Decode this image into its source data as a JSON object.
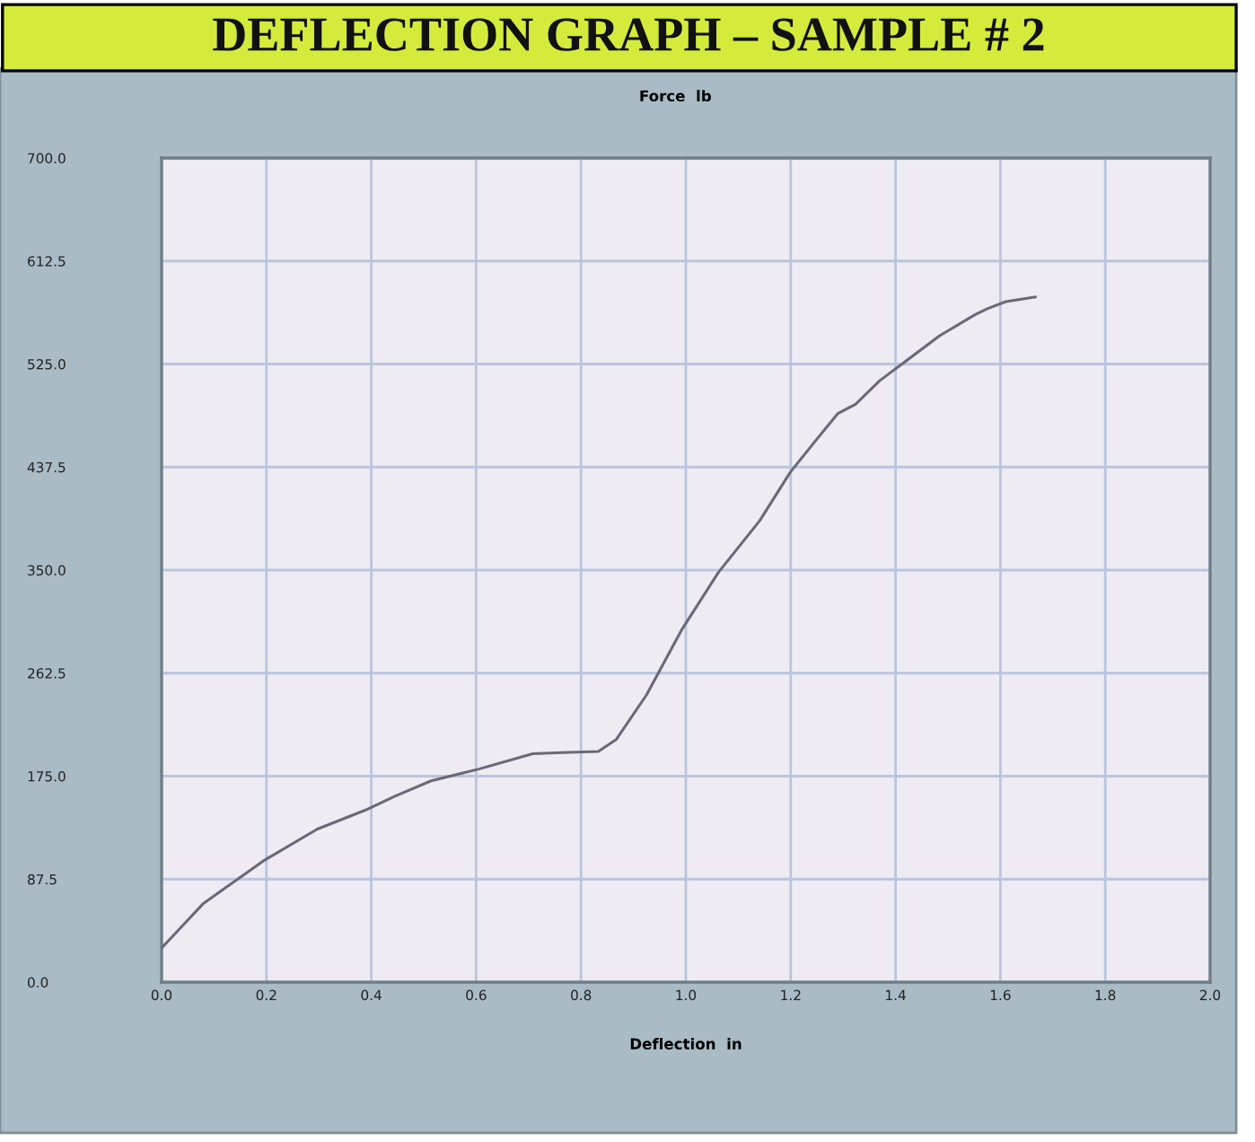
{
  "chart_data": {
    "type": "line",
    "title": "DEFLECTION GRAPH – SAMPLE # 2",
    "xlabel": "Deflection  in",
    "ylabel": "Force  lb",
    "x": [
      0,
      0.08,
      0.194,
      0.297,
      0.388,
      0.445,
      0.514,
      0.605,
      0.708,
      0.765,
      0.833,
      0.867,
      0.925,
      0.993,
      1.062,
      1.141,
      1.199,
      1.244,
      1.29,
      1.324,
      1.37,
      1.415,
      1.484,
      1.552,
      1.575,
      1.61,
      1.667
    ],
    "series": [
      {
        "color": "#6b6878",
        "values": [
          29,
          67,
          103,
          130,
          146,
          158,
          171,
          181,
          194,
          195,
          196,
          206,
          244,
          300,
          348,
          392,
          433,
          458,
          483,
          491,
          511,
          526,
          549,
          567,
          572,
          578,
          582
        ]
      }
    ],
    "xlim": [
      0,
      2
    ],
    "xticks": [
      {
        "value": 0,
        "label": "0.0"
      },
      {
        "value": 0.2,
        "label": "0.2"
      },
      {
        "value": 0.4,
        "label": "0.4"
      },
      {
        "value": 0.6,
        "label": "0.6"
      },
      {
        "value": 0.8,
        "label": "0.8"
      },
      {
        "value": 1.0,
        "label": "1.0"
      },
      {
        "value": 1.2,
        "label": "1.2"
      },
      {
        "value": 1.4,
        "label": "1.4"
      },
      {
        "value": 1.6,
        "label": "1.6"
      },
      {
        "value": 1.8,
        "label": "1.8"
      },
      {
        "value": 2.0,
        "label": "2.0"
      }
    ],
    "ylim": [
      0,
      700
    ],
    "yticks": [
      {
        "value": 0,
        "label": "0.0"
      },
      {
        "value": 87.5,
        "label": "87.5"
      },
      {
        "value": 175,
        "label": "175.0"
      },
      {
        "value": 262.5,
        "label": "262.5"
      },
      {
        "value": 350,
        "label": "350.0"
      },
      {
        "value": 437.5,
        "label": "437.5"
      },
      {
        "value": 525,
        "label": "525.0"
      },
      {
        "value": 612.5,
        "label": "612.5"
      },
      {
        "value": 700,
        "label": "700.0"
      }
    ],
    "grid": true,
    "marker": "none",
    "line_style": "solid"
  }
}
